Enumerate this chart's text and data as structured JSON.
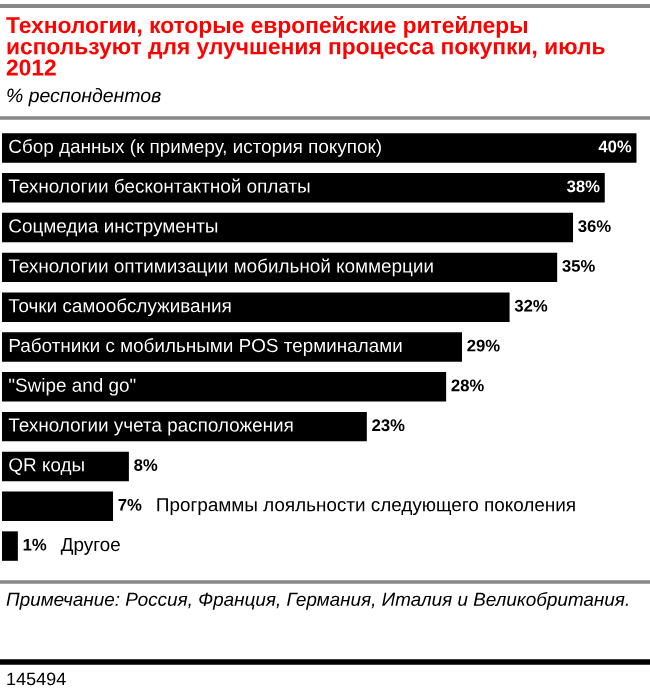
{
  "chart_data": {
    "type": "bar",
    "orientation": "horizontal",
    "title": "Технологии, которые европейские ритейлеры используют для улучшения процесса покупки, июль 2012",
    "subtitle": "% респондентов",
    "categories": [
      "Сбор данных (к примеру, история покупок)",
      "Технологии бесконтактной оплаты",
      "Соцмедиа инструменты",
      "Технологии оптимизации мобильной коммерции",
      "Точки самообслуживания",
      "Работники с мобильными POS терминалами",
      "\"Swipe and go\"",
      "Технологии учета расположения",
      "QR коды",
      "Программы лояльности следующего поколения",
      "Другое"
    ],
    "values": [
      40,
      38,
      36,
      35,
      32,
      29,
      28,
      23,
      8,
      7,
      1
    ],
    "color": "#000000",
    "value_labels": [
      "40%",
      "38%",
      "36%",
      "35%",
      "32%",
      "29%",
      "28%",
      "23%",
      "8%",
      "7%",
      "1%"
    ],
    "annotations": [
      "Примечание: Россия, Франция, Германия, Италия и Великобритания.",
      "145494"
    ],
    "legend": false
  }
}
